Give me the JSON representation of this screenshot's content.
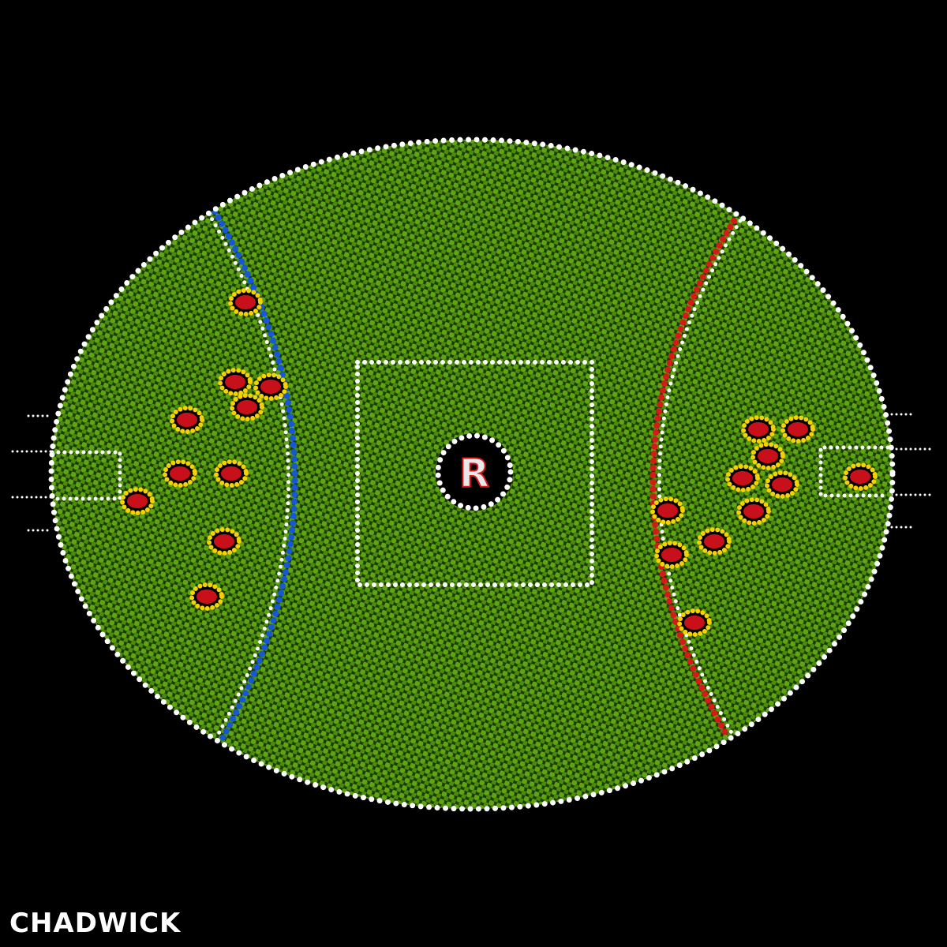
{
  "artwork": {
    "center_logo_letter": "R",
    "signature": "CHADWICK"
  },
  "colors": {
    "background": "#000000",
    "grass_light": "#6cb013",
    "grass_dark": "#3f7d0a",
    "boundary": "#ffffff",
    "left_arc": "#1557d6",
    "right_arc": "#d61a1a",
    "flower_petal": "#f7d200",
    "flower_center": "#c8101a"
  }
}
